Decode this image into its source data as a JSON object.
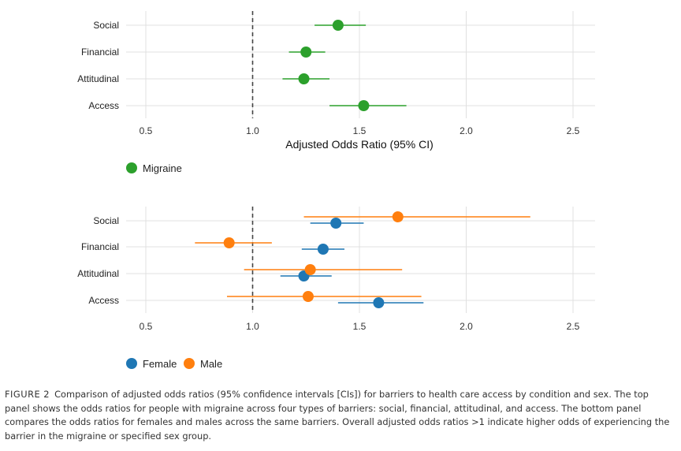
{
  "chart_data": [
    {
      "type": "forest",
      "panel": "top",
      "categories": [
        "Social",
        "Financial",
        "Attitudinal",
        "Access"
      ],
      "xlim": [
        0.5,
        2.5
      ],
      "xticks": [
        0.5,
        1.0,
        1.5,
        2.0,
        2.5
      ],
      "xtick_labels": [
        "0.5",
        "1.0",
        "1.5",
        "2.0",
        "2.5"
      ],
      "reference_line": 1.0,
      "xlabel": "Adjusted Odds Ratio (95% CI)",
      "legend_position": "bottom-left",
      "series": [
        {
          "name": "Migraine",
          "color": "#2ca02c",
          "points": [
            {
              "category": "Social",
              "or": 1.4,
              "lo": 1.29,
              "hi": 1.53
            },
            {
              "category": "Financial",
              "or": 1.25,
              "lo": 1.17,
              "hi": 1.34
            },
            {
              "category": "Attitudinal",
              "or": 1.24,
              "lo": 1.14,
              "hi": 1.36
            },
            {
              "category": "Access",
              "or": 1.52,
              "lo": 1.36,
              "hi": 1.72
            }
          ]
        }
      ]
    },
    {
      "type": "forest",
      "panel": "bottom",
      "categories": [
        "Social",
        "Financial",
        "Attitudinal",
        "Access"
      ],
      "xlim": [
        0.5,
        2.5
      ],
      "xticks": [
        0.5,
        1.0,
        1.5,
        2.0,
        2.5
      ],
      "xtick_labels": [
        "0.5",
        "1.0",
        "1.5",
        "2.0",
        "2.5"
      ],
      "reference_line": 1.0,
      "xlabel": "",
      "legend_position": "bottom-left",
      "series": [
        {
          "name": "Female",
          "color": "#1f77b4",
          "points": [
            {
              "category": "Social",
              "or": 1.39,
              "lo": 1.27,
              "hi": 1.52
            },
            {
              "category": "Financial",
              "or": 1.33,
              "lo": 1.23,
              "hi": 1.43
            },
            {
              "category": "Attitudinal",
              "or": 1.24,
              "lo": 1.13,
              "hi": 1.37
            },
            {
              "category": "Access",
              "or": 1.59,
              "lo": 1.4,
              "hi": 1.8
            }
          ]
        },
        {
          "name": "Male",
          "color": "#ff7f0e",
          "points": [
            {
              "category": "Social",
              "or": 1.68,
              "lo": 1.24,
              "hi": 2.3
            },
            {
              "category": "Financial",
              "or": 0.89,
              "lo": 0.73,
              "hi": 1.09
            },
            {
              "category": "Attitudinal",
              "or": 1.27,
              "lo": 0.96,
              "hi": 1.7
            },
            {
              "category": "Access",
              "or": 1.26,
              "lo": 0.88,
              "hi": 1.79
            }
          ]
        }
      ]
    }
  ],
  "caption": {
    "label": "FIGURE 2",
    "text": "Comparison of adjusted odds ratios (95% confidence intervals [CIs]) for barriers to health care access by condition and sex. The top panel shows the odds ratios for people with migraine across four types of barriers: social, financial, attitudinal, and access. The bottom panel compares the odds ratios for females and males across the same barriers. Overall adjusted odds ratios >1 indicate higher odds of experiencing the barrier in the migraine or specified sex group."
  }
}
